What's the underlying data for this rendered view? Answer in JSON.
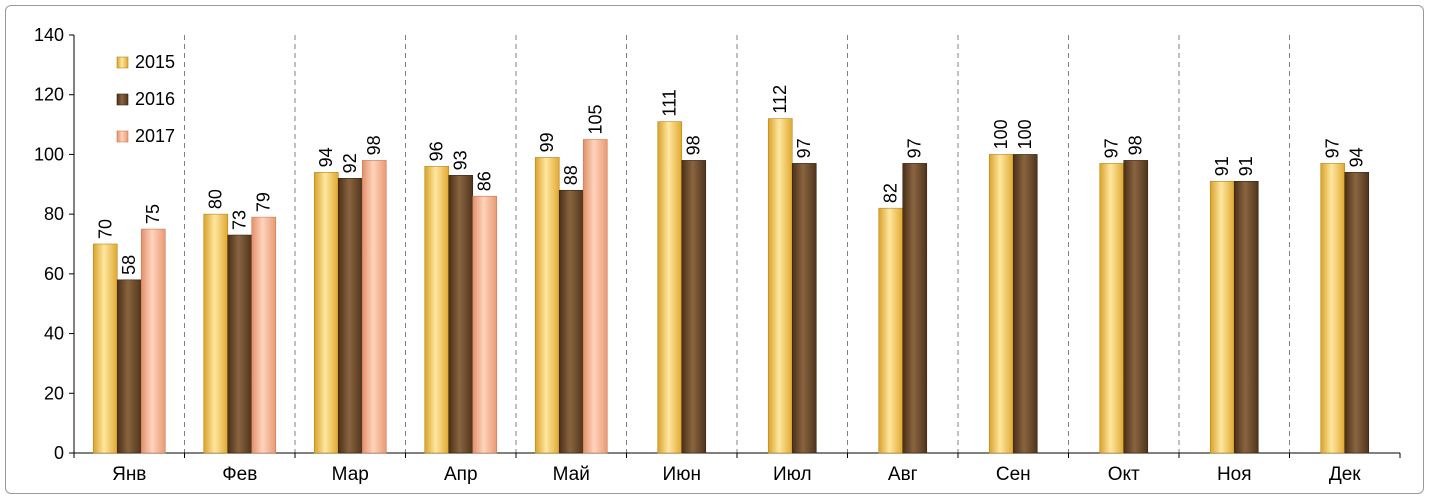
{
  "chart_data": {
    "type": "bar",
    "categories": [
      "Янв",
      "Фев",
      "Мар",
      "Апр",
      "Май",
      "Июн",
      "Июл",
      "Авг",
      "Сен",
      "Окт",
      "Ноя",
      "Дек"
    ],
    "series": [
      {
        "name": "2015",
        "color": "#f2c94c",
        "values": [
          70,
          80,
          94,
          96,
          99,
          111,
          112,
          82,
          100,
          97,
          91,
          97
        ]
      },
      {
        "name": "2016",
        "color": "#6b4a2b",
        "values": [
          58,
          73,
          92,
          93,
          88,
          98,
          97,
          97,
          100,
          98,
          91,
          94
        ]
      },
      {
        "name": "2017",
        "color": "#f2b08c",
        "values": [
          75,
          79,
          98,
          86,
          105,
          null,
          null,
          null,
          null,
          null,
          null,
          null
        ]
      }
    ],
    "ylim": [
      0,
      140
    ],
    "yticks": [
      0,
      20,
      40,
      60,
      80,
      100,
      120,
      140
    ],
    "grid": "vertical-dashed-between-categories",
    "legend": "top-left",
    "title": "",
    "xlabel": "",
    "ylabel": ""
  }
}
